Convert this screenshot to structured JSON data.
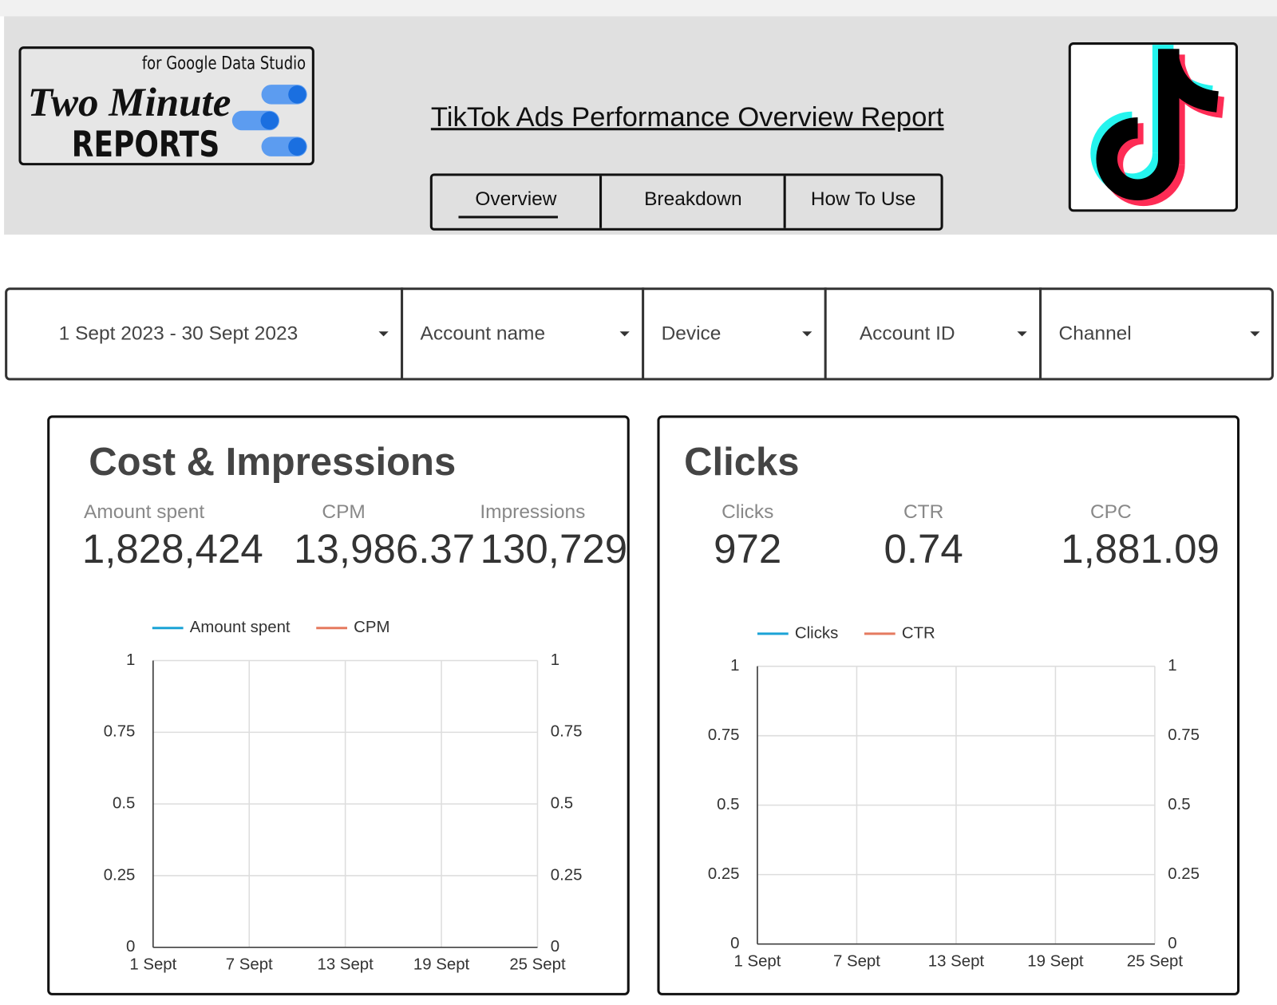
{
  "header": {
    "logo": {
      "tagline": "for Google Data Studio",
      "line1": "Two Minute",
      "line2": "REPORTS"
    },
    "title": "TikTok Ads Performance Overview Report",
    "tabs": [
      "Overview",
      "Breakdown",
      "How To Use"
    ]
  },
  "filters": [
    "1 Sept 2023 - 30 Sept 2023",
    "Account name",
    "Device",
    "Account ID",
    "Channel"
  ],
  "panels": [
    {
      "title": "Cost & Impressions",
      "metrics": [
        {
          "label": "Amount spent",
          "value": "1,828,424"
        },
        {
          "label": "CPM",
          "value": "13,986.37"
        },
        {
          "label": "Impressions",
          "value": "130,729"
        }
      ]
    },
    {
      "title": "Clicks",
      "metrics": [
        {
          "label": "Clicks",
          "value": "972"
        },
        {
          "label": "CTR",
          "value": "0.74"
        },
        {
          "label": "CPC",
          "value": "1,881.09"
        }
      ]
    }
  ],
  "chart_data": [
    {
      "type": "line",
      "categories": [
        "1 Sept",
        "7 Sept",
        "13 Sept",
        "19 Sept",
        "25 Sept"
      ],
      "series": [
        {
          "name": "Amount spent",
          "color": "#1ba3d6"
        },
        {
          "name": "CPM",
          "color": "#e57a5f",
          "axis": "y2"
        }
      ],
      "ylim": [
        0,
        1
      ],
      "yticks": [
        0,
        0.25,
        0.5,
        0.75,
        1
      ],
      "y2lim": [
        0,
        1
      ],
      "y2ticks": [
        0,
        0.25,
        0.5,
        0.75,
        1
      ],
      "grid": true
    },
    {
      "type": "line",
      "categories": [
        "1 Sept",
        "7 Sept",
        "13 Sept",
        "19 Sept",
        "25 Sept"
      ],
      "series": [
        {
          "name": "Clicks",
          "color": "#1ba3d6"
        },
        {
          "name": "CTR",
          "color": "#e57a5f",
          "axis": "y2"
        }
      ],
      "ylim": [
        0,
        1
      ],
      "yticks": [
        0,
        0.25,
        0.5,
        0.75,
        1
      ],
      "y2lim": [
        0,
        1
      ],
      "y2ticks": [
        0,
        0.25,
        0.5,
        0.75,
        1
      ],
      "grid": true
    }
  ]
}
